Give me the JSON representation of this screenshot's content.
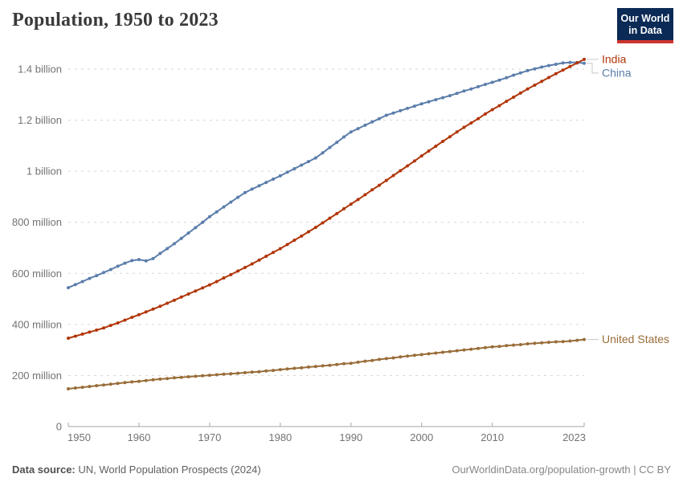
{
  "header": {
    "title": "Population, 1950 to 2023"
  },
  "logo": {
    "line1": "Our World",
    "line2": "in Data",
    "bg_color": "#0b2a55",
    "accent_color": "#cf352e"
  },
  "footer": {
    "source_label": "Data source:",
    "source_text": " UN, World Population Prospects (2024)",
    "link_text": "OurWorldinData.org/population-growth | CC BY"
  },
  "chart_data": {
    "type": "line",
    "title": "Population, 1950 to 2023",
    "unit": "people (millions)",
    "x_range": {
      "start": 1950,
      "end": 2023,
      "step": 1
    },
    "x_ticks": [
      1950,
      1960,
      1970,
      1980,
      1990,
      2000,
      2010,
      2023
    ],
    "y_ticks": [
      {
        "value": 0,
        "label": "0"
      },
      {
        "value": 200,
        "label": "200 million"
      },
      {
        "value": 400,
        "label": "400 million"
      },
      {
        "value": 600,
        "label": "600 million"
      },
      {
        "value": 800,
        "label": "800 million"
      },
      {
        "value": 1000,
        "label": "1 billion"
      },
      {
        "value": 1200,
        "label": "1.2 billion"
      },
      {
        "value": 1400,
        "label": "1.4 billion"
      }
    ],
    "ylim": [
      0,
      1450
    ],
    "grid": "horizontal-dashed",
    "legend_position": "end-of-line-labels",
    "markers": true,
    "z_order": [
      "China",
      "United States",
      "India"
    ],
    "series": [
      {
        "name": "India",
        "color": "#b13507",
        "values": [
          346,
          354,
          362,
          370,
          378,
          386,
          396,
          406,
          417,
          428,
          438,
          449,
          460,
          471,
          483,
          495,
          507,
          519,
          531,
          543,
          555,
          568,
          582,
          595,
          609,
          623,
          637,
          652,
          667,
          682,
          697,
          713,
          730,
          746,
          763,
          780,
          798,
          816,
          834,
          853,
          871,
          889,
          908,
          927,
          945,
          964,
          983,
          1002,
          1021,
          1040,
          1060,
          1079,
          1098,
          1117,
          1135,
          1154,
          1172,
          1189,
          1206,
          1224,
          1241,
          1257,
          1274,
          1290,
          1306,
          1322,
          1337,
          1352,
          1367,
          1382,
          1396,
          1410,
          1424,
          1438
        ]
      },
      {
        "name": "China",
        "color": "#5b7dab",
        "values": [
          544,
          556,
          568,
          580,
          591,
          603,
          615,
          628,
          640,
          650,
          654,
          649,
          658,
          678,
          697,
          716,
          737,
          758,
          779,
          800,
          822,
          841,
          860,
          879,
          898,
          916,
          930,
          943,
          956,
          969,
          982,
          996,
          1010,
          1024,
          1038,
          1052,
          1072,
          1093,
          1113,
          1134,
          1154,
          1167,
          1180,
          1193,
          1206,
          1219,
          1228,
          1237,
          1246,
          1255,
          1264,
          1272,
          1280,
          1288,
          1296,
          1305,
          1314,
          1322,
          1331,
          1340,
          1348,
          1357,
          1366,
          1376,
          1385,
          1394,
          1401,
          1408,
          1414,
          1419,
          1424,
          1426,
          1426,
          1423
        ]
      },
      {
        "name": "United States",
        "color": "#996d39",
        "values": [
          148,
          151,
          154,
          157,
          160,
          163,
          166,
          169,
          172,
          175,
          177,
          180,
          183,
          186,
          188,
          191,
          193,
          195,
          197,
          199,
          201,
          203,
          205,
          207,
          209,
          211,
          213,
          215,
          218,
          220,
          223,
          226,
          228,
          230,
          233,
          235,
          238,
          240,
          243,
          246,
          248,
          252,
          256,
          259,
          263,
          266,
          269,
          273,
          276,
          279,
          282,
          285,
          288,
          291,
          294,
          297,
          300,
          303,
          306,
          309,
          312,
          314,
          317,
          319,
          321,
          324,
          326,
          328,
          330,
          332,
          333,
          335,
          338,
          341
        ]
      }
    ]
  }
}
